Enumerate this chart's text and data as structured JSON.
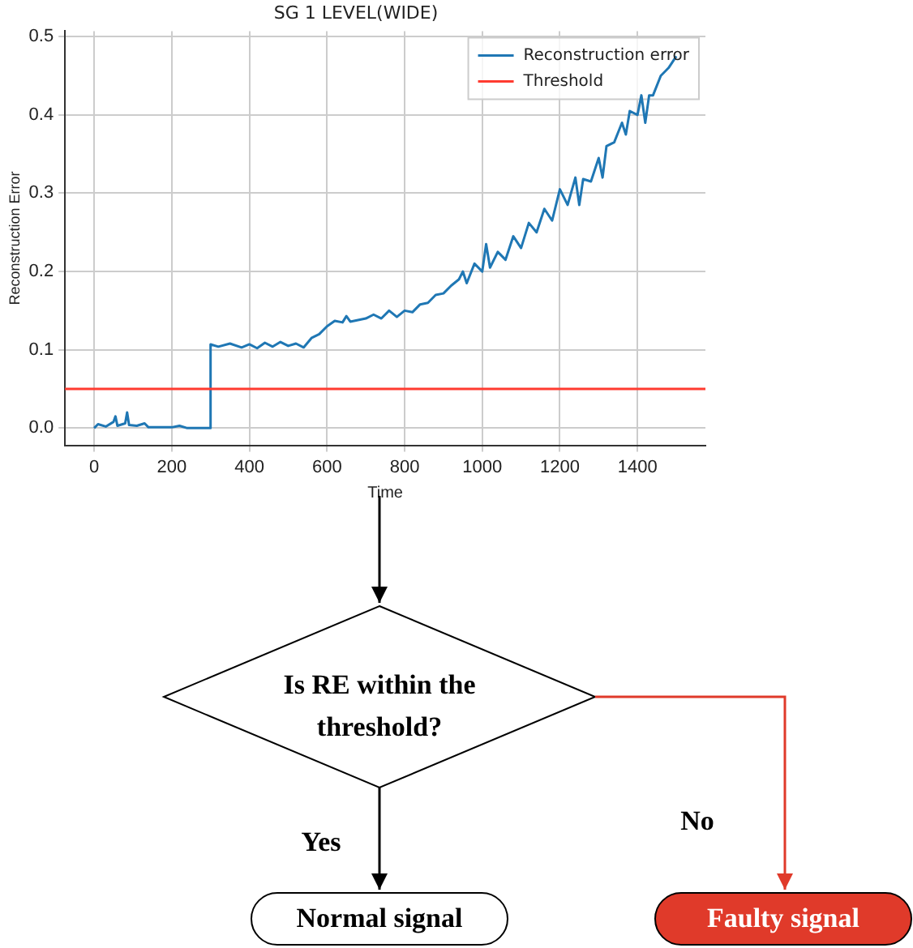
{
  "chart_data": {
    "type": "line",
    "title": "SG 1 LEVEL(WIDE)",
    "xlabel": "Time",
    "ylabel": "Reconstruction Error",
    "x": [
      0,
      10,
      30,
      50,
      55,
      60,
      80,
      85,
      90,
      110,
      130,
      140,
      200,
      220,
      240,
      298,
      300,
      320,
      350,
      380,
      400,
      420,
      440,
      460,
      480,
      500,
      520,
      540,
      560,
      580,
      600,
      620,
      640,
      650,
      660,
      700,
      720,
      740,
      760,
      780,
      800,
      820,
      840,
      860,
      880,
      900,
      920,
      940,
      950,
      960,
      980,
      1000,
      1010,
      1020,
      1040,
      1060,
      1080,
      1100,
      1120,
      1140,
      1160,
      1180,
      1200,
      1220,
      1240,
      1250,
      1260,
      1280,
      1300,
      1310,
      1320,
      1340,
      1360,
      1370,
      1380,
      1400,
      1410,
      1420,
      1430,
      1440,
      1460,
      1480,
      1500
    ],
    "series": [
      {
        "name": "Reconstruction error",
        "color": "#1f77b4",
        "values": [
          0.0,
          0.005,
          0.002,
          0.008,
          0.015,
          0.003,
          0.006,
          0.02,
          0.004,
          0.003,
          0.006,
          0.001,
          0.001,
          0.003,
          0.0,
          0.0,
          0.107,
          0.104,
          0.108,
          0.103,
          0.107,
          0.102,
          0.109,
          0.104,
          0.11,
          0.105,
          0.108,
          0.103,
          0.115,
          0.12,
          0.13,
          0.137,
          0.135,
          0.143,
          0.136,
          0.14,
          0.145,
          0.14,
          0.15,
          0.142,
          0.15,
          0.148,
          0.158,
          0.16,
          0.17,
          0.172,
          0.182,
          0.19,
          0.2,
          0.185,
          0.21,
          0.2,
          0.235,
          0.205,
          0.225,
          0.215,
          0.245,
          0.23,
          0.262,
          0.25,
          0.28,
          0.265,
          0.305,
          0.285,
          0.32,
          0.285,
          0.318,
          0.315,
          0.345,
          0.32,
          0.36,
          0.365,
          0.39,
          0.375,
          0.405,
          0.4,
          0.425,
          0.39,
          0.425,
          0.425,
          0.45,
          0.46,
          0.475
        ]
      }
    ],
    "ref_lines": [
      {
        "axis": "y",
        "value": 0.05,
        "label": "Threshold",
        "color": "#ff3b30"
      }
    ],
    "xlim": [
      -75,
      1575
    ],
    "xticks": [
      0,
      200,
      400,
      600,
      800,
      1000,
      1200,
      1400
    ],
    "ylim": [
      -0.022,
      0.507
    ],
    "yticks": [
      {
        "value": 0,
        "label": "0.0"
      },
      {
        "value": 0.1,
        "label": "0.1"
      },
      {
        "value": 0.2,
        "label": "0.2"
      },
      {
        "value": 0.3,
        "label": "0.3"
      },
      {
        "value": 0.4,
        "label": "0.4"
      },
      {
        "value": 0.5,
        "label": "0.5"
      }
    ],
    "grid": true,
    "legend": "top right",
    "marker": "none",
    "line_style": "solid",
    "annotations": [
      "Is RE within the threshold?",
      "Yes",
      "No",
      "Normal signal",
      "Faulty signal"
    ]
  }
}
